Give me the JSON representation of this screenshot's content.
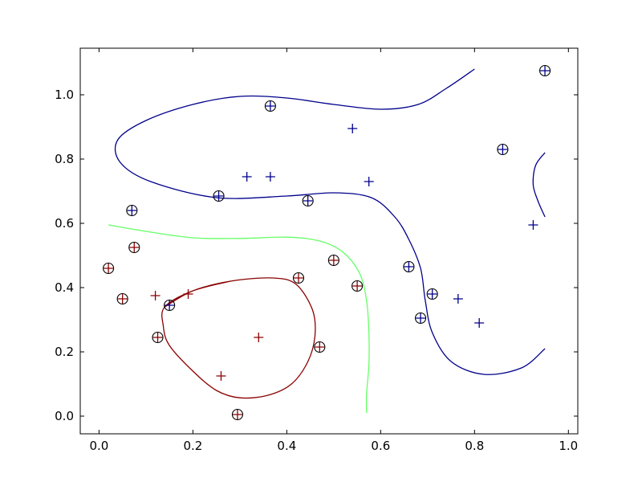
{
  "chart_data": {
    "type": "scatter",
    "title": "",
    "xlabel": "",
    "ylabel": "",
    "xlim": [
      -0.04,
      1.02
    ],
    "ylim": [
      -0.055,
      1.145
    ],
    "grid": false,
    "legend": "none",
    "x_ticks": [
      0.0,
      0.2,
      0.4,
      0.6,
      0.8,
      1.0
    ],
    "x_tick_labels": [
      "0.0",
      "0.2",
      "0.4",
      "0.6",
      "0.8",
      "1.0"
    ],
    "y_ticks": [
      0.0,
      0.2,
      0.4,
      0.6,
      0.8,
      1.0
    ],
    "y_tick_labels": [
      "0.0",
      "0.2",
      "0.4",
      "0.6",
      "0.8",
      "1.0"
    ],
    "colors": {
      "class_blue": "#00008b",
      "class_red": "#8b0000",
      "boundary_mid": "#66ff66"
    },
    "series": [
      {
        "class": "blue",
        "points": [
          {
            "x": 0.365,
            "y": 0.965,
            "circled": true
          },
          {
            "x": 0.54,
            "y": 0.895,
            "circled": false
          },
          {
            "x": 0.95,
            "y": 1.075,
            "circled": true
          },
          {
            "x": 0.86,
            "y": 0.83,
            "circled": true
          },
          {
            "x": 0.315,
            "y": 0.745,
            "circled": false
          },
          {
            "x": 0.365,
            "y": 0.745,
            "circled": false
          },
          {
            "x": 0.575,
            "y": 0.73,
            "circled": false
          },
          {
            "x": 0.255,
            "y": 0.685,
            "circled": true
          },
          {
            "x": 0.445,
            "y": 0.67,
            "circled": true
          },
          {
            "x": 0.07,
            "y": 0.64,
            "circled": true
          },
          {
            "x": 0.925,
            "y": 0.595,
            "circled": false
          },
          {
            "x": 0.66,
            "y": 0.465,
            "circled": true
          },
          {
            "x": 0.71,
            "y": 0.38,
            "circled": true
          },
          {
            "x": 0.765,
            "y": 0.365,
            "circled": false
          },
          {
            "x": 0.15,
            "y": 0.345,
            "circled": true
          },
          {
            "x": 0.685,
            "y": 0.305,
            "circled": true
          },
          {
            "x": 0.81,
            "y": 0.29,
            "circled": false
          }
        ]
      },
      {
        "class": "red",
        "points": [
          {
            "x": 0.075,
            "y": 0.525,
            "circled": true
          },
          {
            "x": 0.02,
            "y": 0.46,
            "circled": true
          },
          {
            "x": 0.5,
            "y": 0.485,
            "circled": true
          },
          {
            "x": 0.425,
            "y": 0.43,
            "circled": true
          },
          {
            "x": 0.55,
            "y": 0.405,
            "circled": true
          },
          {
            "x": 0.05,
            "y": 0.365,
            "circled": true
          },
          {
            "x": 0.12,
            "y": 0.375,
            "circled": false
          },
          {
            "x": 0.19,
            "y": 0.38,
            "circled": false
          },
          {
            "x": 0.125,
            "y": 0.245,
            "circled": true
          },
          {
            "x": 0.34,
            "y": 0.245,
            "circled": false
          },
          {
            "x": 0.47,
            "y": 0.215,
            "circled": true
          },
          {
            "x": 0.26,
            "y": 0.125,
            "circled": false
          },
          {
            "x": 0.295,
            "y": 0.005,
            "circled": true
          }
        ]
      }
    ],
    "contours": [
      {
        "level": "blue",
        "closed": false,
        "points": [
          [
            0.8,
            1.08
          ],
          [
            0.74,
            1.02
          ],
          [
            0.68,
            0.97
          ],
          [
            0.6,
            0.955
          ],
          [
            0.5,
            0.97
          ],
          [
            0.4,
            0.99
          ],
          [
            0.3,
            0.995
          ],
          [
            0.2,
            0.97
          ],
          [
            0.1,
            0.92
          ],
          [
            0.04,
            0.86
          ],
          [
            0.045,
            0.79
          ],
          [
            0.11,
            0.73
          ],
          [
            0.25,
            0.68
          ],
          [
            0.4,
            0.685
          ],
          [
            0.5,
            0.695
          ],
          [
            0.58,
            0.68
          ],
          [
            0.63,
            0.62
          ],
          [
            0.66,
            0.55
          ],
          [
            0.685,
            0.46
          ],
          [
            0.695,
            0.36
          ],
          [
            0.71,
            0.26
          ],
          [
            0.75,
            0.17
          ],
          [
            0.82,
            0.13
          ],
          [
            0.9,
            0.15
          ],
          [
            0.95,
            0.21
          ]
        ]
      },
      {
        "level": "blue",
        "closed": false,
        "points": [
          [
            0.95,
            0.82
          ],
          [
            0.93,
            0.78
          ],
          [
            0.925,
            0.72
          ],
          [
            0.935,
            0.67
          ],
          [
            0.95,
            0.62
          ]
        ]
      },
      {
        "level": "mid",
        "closed": false,
        "points": [
          [
            0.02,
            0.595
          ],
          [
            0.1,
            0.575
          ],
          [
            0.2,
            0.555
          ],
          [
            0.3,
            0.553
          ],
          [
            0.4,
            0.557
          ],
          [
            0.47,
            0.545
          ],
          [
            0.52,
            0.51
          ],
          [
            0.555,
            0.445
          ],
          [
            0.57,
            0.36
          ],
          [
            0.575,
            0.26
          ],
          [
            0.575,
            0.16
          ],
          [
            0.57,
            0.07
          ],
          [
            0.57,
            0.01
          ]
        ]
      },
      {
        "level": "red",
        "closed": true,
        "points": [
          [
            0.14,
            0.34
          ],
          [
            0.2,
            0.39
          ],
          [
            0.28,
            0.42
          ],
          [
            0.37,
            0.43
          ],
          [
            0.42,
            0.41
          ],
          [
            0.455,
            0.33
          ],
          [
            0.46,
            0.25
          ],
          [
            0.445,
            0.17
          ],
          [
            0.41,
            0.1
          ],
          [
            0.36,
            0.065
          ],
          [
            0.3,
            0.057
          ],
          [
            0.25,
            0.08
          ],
          [
            0.2,
            0.14
          ],
          [
            0.15,
            0.22
          ],
          [
            0.137,
            0.28
          ]
        ]
      }
    ]
  }
}
